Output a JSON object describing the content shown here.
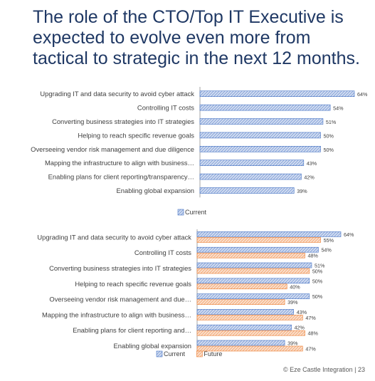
{
  "page": {
    "title": "The role of the CTO/Top IT Executive is expected to evolve even more from tactical to strategic in the next 12 months.",
    "footer": "© Eze Castle Integration | 23"
  },
  "colors": {
    "title": "#1f3864",
    "current": "#8faadc",
    "current_stroke": "#4472c4",
    "future": "#f4b183",
    "future_stroke": "#ed7d31",
    "axis": "#a6a6a6",
    "text": "#404040"
  },
  "chart_data": [
    {
      "type": "bar",
      "orientation": "horizontal",
      "categories": [
        "Upgrading IT and data security to avoid cyber attack",
        "Controlling IT costs",
        "Converting business strategies into IT strategies",
        "Helping to reach specific revenue goals",
        "Overseeing vendor risk management and due diligence",
        "Mapping the infrastructure to align with business…",
        "Enabling plans for client reporting/transparency…",
        "Enabling global expansion"
      ],
      "series": [
        {
          "name": "Current",
          "values": [
            64,
            54,
            51,
            50,
            50,
            43,
            42,
            39
          ],
          "labels": [
            "64%",
            "54%",
            "51%",
            "50%",
            "50%",
            "43%",
            "42%",
            "39%"
          ]
        }
      ],
      "xlim": [
        0,
        64
      ],
      "legend": "bottom"
    },
    {
      "type": "bar",
      "orientation": "horizontal",
      "categories": [
        "Upgrading IT and data security to avoid cyber attack",
        "Controlling IT costs",
        "Converting business strategies into IT strategies",
        "Helping to reach specific revenue goals",
        "Overseeing vendor risk management and due…",
        "Mapping the infrastructure to align with business…",
        "Enabling plans for client reporting and…",
        "Enabling global expansion"
      ],
      "series": [
        {
          "name": "Current",
          "values": [
            64,
            54,
            51,
            50,
            50,
            43,
            42,
            39
          ],
          "labels": [
            "64%",
            "54%",
            "51%",
            "50%",
            "50%",
            "43%",
            "42%",
            "39%"
          ]
        },
        {
          "name": "Future",
          "values": [
            55,
            48,
            50,
            40,
            39,
            47,
            48,
            47
          ],
          "labels": [
            "55%",
            "48%",
            "50%",
            "40%",
            "39%",
            "47%",
            "48%",
            "47%"
          ]
        }
      ],
      "xlim": [
        0,
        64
      ],
      "legend": "bottom"
    }
  ]
}
